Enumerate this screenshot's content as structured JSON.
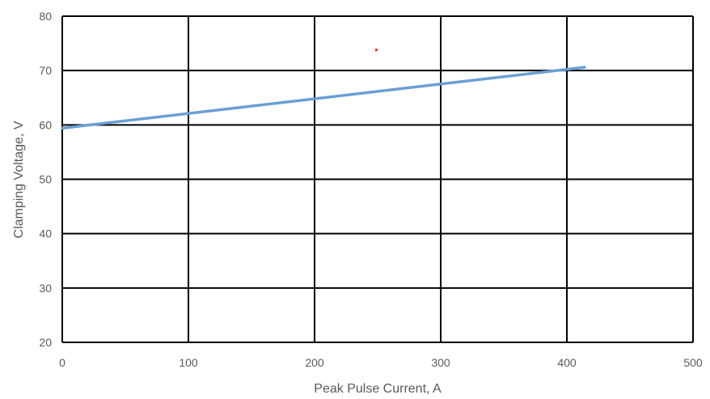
{
  "chart_data": {
    "type": "line",
    "title": "",
    "xlabel": "Peak Pulse Current, A",
    "ylabel": "Clamping Voltage, V",
    "xlim": [
      0,
      500
    ],
    "ylim": [
      20,
      80
    ],
    "x_ticks": [
      0,
      100,
      200,
      300,
      400,
      500
    ],
    "y_ticks": [
      20,
      30,
      40,
      50,
      60,
      70,
      80
    ],
    "grid": true,
    "legend": "none",
    "series": [
      {
        "color": "#6a9fd3",
        "x": [
          0,
          414
        ],
        "y": [
          59.4,
          70.6
        ]
      },
      {
        "color": "#e03030",
        "x": [
          249
        ],
        "y": [
          73.8
        ]
      }
    ]
  }
}
